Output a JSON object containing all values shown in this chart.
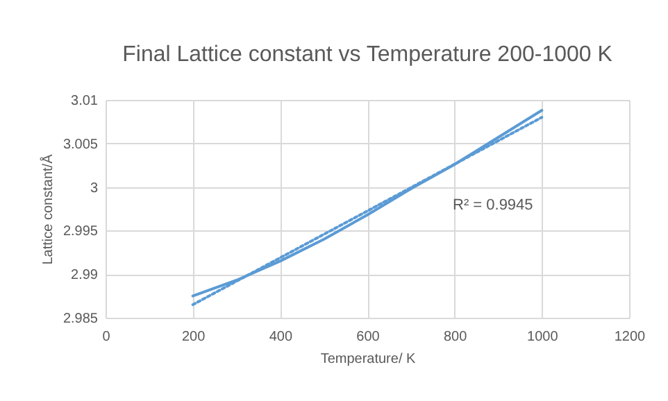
{
  "chart_data": {
    "type": "line",
    "title": "Final Lattice constant vs Temperature 200-1000 K",
    "xlabel": "Temperature/  K",
    "ylabel": "Lattice constant/Å",
    "series": [
      {
        "color": "#5b9bd5",
        "x": [
          200,
          300,
          400,
          500,
          600,
          700,
          800,
          900,
          1000
        ],
        "values": [
          2.9875,
          2.9893,
          2.9915,
          2.994,
          2.9968,
          2.9998,
          3.0026,
          3.0057,
          3.0088
        ]
      },
      {
        "type": "line",
        "line_style": "dotted",
        "color": "#5b9bd5",
        "x": [
          200,
          1000
        ],
        "values": [
          2.9865,
          3.008
        ]
      }
    ],
    "annotations": [
      "R² = 0.9945"
    ],
    "xlim": [
      0,
      1200
    ],
    "xticks": [
      0,
      200,
      400,
      600,
      800,
      1000,
      1200
    ],
    "ylim": [
      2.985,
      3.01
    ],
    "yticks": [
      2.985,
      2.99,
      2.995,
      3,
      3.005,
      3.01
    ],
    "grid": true
  }
}
